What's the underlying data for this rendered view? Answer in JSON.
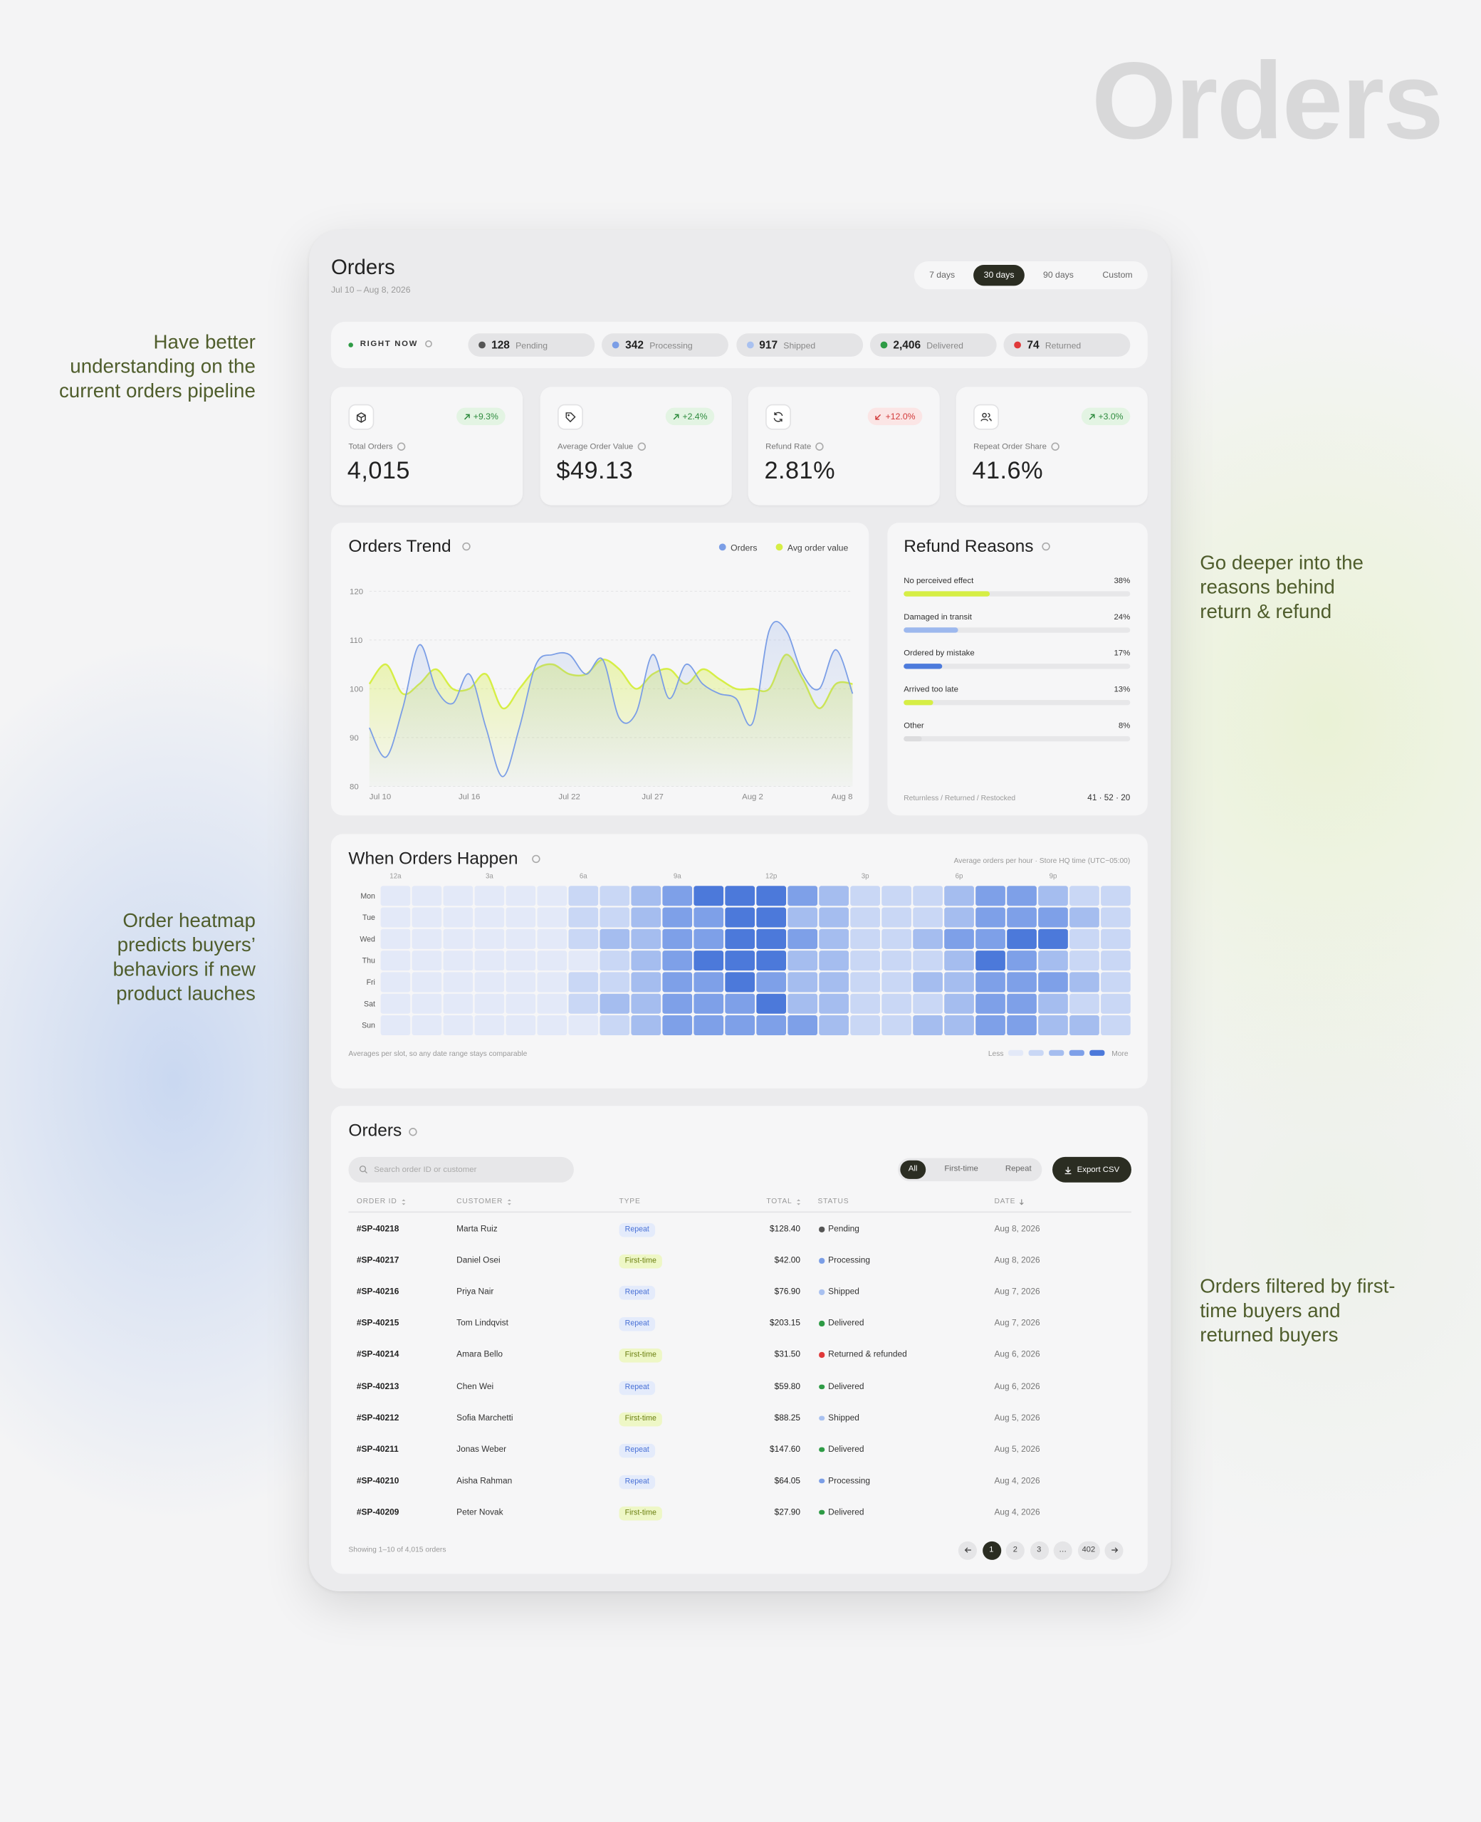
{
  "page": {
    "watermark": "Orders"
  },
  "annotations": [
    {
      "side": "left",
      "lines": [
        "Have better",
        "understanding on the",
        "current orders pipeline"
      ]
    },
    {
      "side": "right",
      "lines": [
        "Go deeper into the",
        "reasons behind",
        "return & refund"
      ]
    },
    {
      "side": "left",
      "lines": [
        "Order heatmap",
        "predicts buyers’",
        "behaviors if new",
        "product lauches"
      ]
    },
    {
      "side": "right",
      "lines": [
        "Orders filtered by first-",
        "time buyers and",
        "returned buyers"
      ]
    }
  ],
  "header": {
    "title": "Orders",
    "date_range": "Jul 10 – Aug 8, 2026",
    "ranges": [
      "7 days",
      "30 days",
      "90 days",
      "Custom"
    ],
    "active": 1
  },
  "pipeline": {
    "label": "RIGHT NOW",
    "stages": [
      {
        "count": 128,
        "name": "Pending",
        "color": "#555555"
      },
      {
        "count": 342,
        "name": "Processing",
        "color": "#7b9ee6"
      },
      {
        "count": 917,
        "name": "Shipped",
        "color": "#a9c1f0"
      },
      {
        "count": "2,406",
        "name": "Delivered",
        "color": "#2e9b45"
      },
      {
        "count": 74,
        "name": "Returned",
        "color": "#e0393a"
      }
    ]
  },
  "kpis": [
    {
      "label": "Total Orders",
      "value": "4,015",
      "delta": "+9.3%",
      "tone": "positive"
    },
    {
      "label": "Average Order Value",
      "value": "$49.13",
      "delta": "+2.4%",
      "tone": "positive"
    },
    {
      "label": "Refund Rate",
      "value": "2.81%",
      "delta": "+12.0%",
      "tone": "negative"
    },
    {
      "label": "Repeat Order Share",
      "value": "41.6%",
      "delta": "+3.0%",
      "tone": "positive"
    }
  ],
  "chart_data": [
    {
      "type": "line",
      "title": "Orders Trend",
      "categories": [
        "Jul 10",
        null,
        null,
        null,
        null,
        null,
        "Jul 16",
        null,
        null,
        null,
        null,
        null,
        "Jul 22",
        null,
        null,
        null,
        null,
        "Jul 27",
        null,
        null,
        null,
        null,
        null,
        "Aug 2",
        null,
        null,
        null,
        null,
        null,
        "Aug 8"
      ],
      "series": [
        {
          "name": "Orders",
          "color": "#7b9ee6",
          "values": [
            92,
            86,
            96,
            109,
            100,
            97,
            103,
            92,
            82,
            92,
            105,
            107,
            107,
            103,
            106,
            94,
            95,
            107,
            98,
            105,
            101,
            99,
            98,
            93,
            112,
            112,
            103,
            100,
            108,
            99
          ]
        },
        {
          "name": "Avg order value",
          "color": "#d6ee45",
          "values": [
            101,
            105,
            99,
            101,
            104,
            100,
            100,
            103,
            96,
            100,
            104,
            105,
            103,
            103,
            106,
            104,
            100,
            103,
            104,
            101,
            104,
            102,
            100,
            100,
            100,
            107,
            102,
            96,
            101,
            101
          ]
        }
      ],
      "ylim": [
        80,
        120
      ],
      "yticks": [
        80,
        90,
        100,
        110,
        120
      ],
      "grid": true,
      "legend": "top-right"
    },
    {
      "type": "bar",
      "orientation": "horizontal",
      "title": "Refund Reasons",
      "categories": [
        "No perceived effect",
        "Damaged in transit",
        "Ordered by mistake",
        "Arrived too late",
        "Other"
      ],
      "values": [
        38,
        24,
        17,
        13,
        8
      ],
      "value_labels": [
        "38%",
        "24%",
        "17%",
        "13%",
        "8%"
      ],
      "colors": [
        "#d6ee45",
        "#9db8ee",
        "#4d7bdc",
        "#d6ee45",
        "#dcdcde"
      ],
      "xlim": [
        0,
        100
      ],
      "footer_label": "Returnless / Returned / Restocked",
      "footer_value": "41 · 52 · 20"
    },
    {
      "type": "heatmap",
      "title": "When Orders Happen",
      "subtitle": "Average orders per hour · Store HQ time (UTC−05:00)",
      "rows": [
        "Mon",
        "Tue",
        "Wed",
        "Thu",
        "Fri",
        "Sat",
        "Sun"
      ],
      "columns": [
        "12a",
        null,
        null,
        "3a",
        null,
        null,
        "6a",
        null,
        null,
        "9a",
        null,
        null,
        "12p",
        null,
        null,
        "3p",
        null,
        null,
        "6p",
        null,
        null,
        "9p",
        null,
        null
      ],
      "values": [
        [
          0,
          0,
          0,
          0,
          0,
          0,
          1,
          1,
          2,
          3,
          4,
          4,
          4,
          3,
          2,
          1,
          1,
          1,
          2,
          3,
          3,
          2,
          1,
          1
        ],
        [
          0,
          0,
          0,
          0,
          0,
          0,
          1,
          1,
          2,
          3,
          3,
          4,
          4,
          2,
          2,
          1,
          1,
          1,
          2,
          3,
          3,
          3,
          2,
          1
        ],
        [
          0,
          0,
          0,
          0,
          0,
          0,
          1,
          2,
          2,
          3,
          3,
          4,
          4,
          3,
          2,
          1,
          1,
          2,
          3,
          3,
          4,
          4,
          1,
          1
        ],
        [
          0,
          0,
          0,
          0,
          0,
          0,
          0,
          1,
          2,
          3,
          4,
          4,
          4,
          2,
          2,
          1,
          1,
          1,
          2,
          4,
          3,
          2,
          1,
          1
        ],
        [
          0,
          0,
          0,
          0,
          0,
          0,
          1,
          1,
          2,
          3,
          3,
          4,
          3,
          2,
          2,
          1,
          1,
          2,
          2,
          3,
          3,
          3,
          2,
          1
        ],
        [
          0,
          0,
          0,
          0,
          0,
          0,
          1,
          2,
          2,
          3,
          3,
          3,
          4,
          2,
          2,
          1,
          1,
          1,
          2,
          3,
          3,
          2,
          1,
          1
        ],
        [
          0,
          0,
          0,
          0,
          0,
          0,
          0,
          1,
          2,
          3,
          3,
          3,
          3,
          3,
          2,
          1,
          1,
          2,
          2,
          3,
          3,
          2,
          2,
          1
        ]
      ],
      "colors": [
        "#e3e9f8",
        "#c9d7f5",
        "#a5bdef",
        "#7ea0e8",
        "#4c79da"
      ],
      "legend_low": "Less",
      "legend_high": "More",
      "note": "Averages per slot, so any date range stays comparable"
    }
  ],
  "orders_table": {
    "title": "Orders",
    "search_placeholder": "Search order ID or customer",
    "filters": [
      "All",
      "First-time",
      "Repeat"
    ],
    "active_filter": 0,
    "export": "Export CSV",
    "columns": [
      "ORDER ID",
      "CUSTOMER",
      "TYPE",
      "TOTAL",
      "STATUS",
      "DATE"
    ],
    "rows": [
      [
        "#SP-40218",
        "Marta Ruiz",
        "Repeat",
        "$128.40",
        "Pending",
        "Aug 8, 2026"
      ],
      [
        "#SP-40217",
        "Daniel Osei",
        "First-time",
        "$42.00",
        "Processing",
        "Aug 8, 2026"
      ],
      [
        "#SP-40216",
        "Priya Nair",
        "Repeat",
        "$76.90",
        "Shipped",
        "Aug 7, 2026"
      ],
      [
        "#SP-40215",
        "Tom Lindqvist",
        "Repeat",
        "$203.15",
        "Delivered",
        "Aug 7, 2026"
      ],
      [
        "#SP-40214",
        "Amara Bello",
        "First-time",
        "$31.50",
        "Returned & refunded",
        "Aug 6, 2026"
      ],
      [
        "#SP-40213",
        "Chen Wei",
        "Repeat",
        "$59.80",
        "Delivered",
        "Aug 6, 2026"
      ],
      [
        "#SP-40212",
        "Sofia Marchetti",
        "First-time",
        "$88.25",
        "Shipped",
        "Aug 5, 2026"
      ],
      [
        "#SP-40211",
        "Jonas Weber",
        "Repeat",
        "$147.60",
        "Delivered",
        "Aug 5, 2026"
      ],
      [
        "#SP-40210",
        "Aisha Rahman",
        "Repeat",
        "$64.05",
        "Processing",
        "Aug 4, 2026"
      ],
      [
        "#SP-40209",
        "Peter Novak",
        "First-time",
        "$27.90",
        "Delivered",
        "Aug 4, 2026"
      ]
    ],
    "type_styles": {
      "Repeat": {
        "bg": "#e4ebfb",
        "fg": "#4a72d6"
      },
      "First-time": {
        "bg": "#eef7c6",
        "fg": "#6b7f10"
      }
    },
    "status_colors": {
      "Pending": "#555555",
      "Processing": "#7b9ee6",
      "Shipped": "#a9c1f0",
      "Delivered": "#2e9b45",
      "Returned & refunded": "#e0393a"
    },
    "summary": "Showing 1–10 of 4,015 orders",
    "pages": [
      "1",
      "2",
      "3",
      "…",
      "402"
    ],
    "active_page": 0
  }
}
